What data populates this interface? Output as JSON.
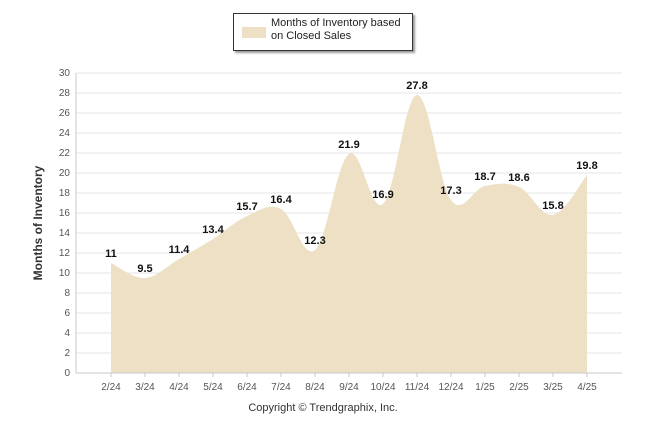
{
  "chart_data": {
    "type": "area",
    "categories": [
      "2/24",
      "3/24",
      "4/24",
      "5/24",
      "6/24",
      "7/24",
      "8/24",
      "9/24",
      "10/24",
      "11/24",
      "12/24",
      "1/25",
      "2/25",
      "3/25",
      "4/25"
    ],
    "series": [
      {
        "name": "Months of Inventory based on Closed Sales",
        "values": [
          11,
          9.5,
          11.4,
          13.4,
          15.7,
          16.4,
          12.3,
          21.9,
          16.9,
          27.8,
          17.3,
          18.7,
          18.6,
          15.8,
          19.8
        ],
        "color": "#ede0c4"
      }
    ],
    "data_labels": [
      "11",
      "9.5",
      "11.4",
      "13.4",
      "15.7",
      "16.4",
      "12.3",
      "21.9",
      "16.9",
      "27.8",
      "17.3",
      "18.7",
      "18.6",
      "15.8",
      "19.8"
    ],
    "ylabel": "Months of Inventory",
    "ylim": [
      0,
      30
    ],
    "yticks": [
      0,
      2,
      4,
      6,
      8,
      10,
      12,
      14,
      16,
      18,
      20,
      22,
      24,
      26,
      28,
      30
    ],
    "grid": true,
    "legend_placement": "top-center"
  },
  "legend": {
    "label": "Months of Inventory based on Closed Sales",
    "color": "#ede0c4"
  },
  "footer": {
    "copyright": "Copyright © Trendgraphix, Inc."
  }
}
